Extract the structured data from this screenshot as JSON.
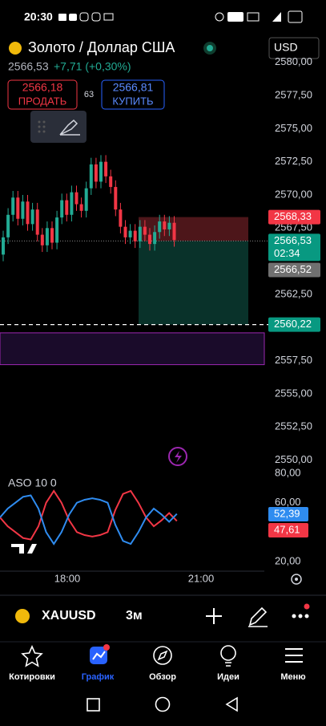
{
  "status_bar": {
    "time": "20:30"
  },
  "header": {
    "title": "Золото / Доллар США",
    "currency": "USD",
    "price": "2566,53",
    "change": "+7,71 (+0,30%)"
  },
  "trade": {
    "sell_price": "2566,18",
    "sell_label": "ПРОДАТЬ",
    "spread": "63",
    "buy_price": "2566,81",
    "buy_label": "КУПИТЬ"
  },
  "chart": {
    "type": "candlestick",
    "open": [
      2565.5,
      2566.8,
      2568.5,
      2569.8,
      2568.2,
      2569.5,
      2567.8,
      2568.9,
      2567.0,
      2566.2,
      2567.5,
      2566.4,
      2568.3,
      2569.6,
      2568.5,
      2570.2,
      2569.3,
      2568.8,
      2570.5,
      2572.3,
      2571.0,
      2572.5,
      2571.4,
      2570.6,
      2568.9,
      2567.6,
      2566.8,
      2567.3,
      2566.5,
      2567.6,
      2567.0,
      2566.3,
      2567.2,
      2568.0,
      2567.4,
      2567.9
    ],
    "high": [
      2567.3,
      2569.0,
      2570.3,
      2570.3,
      2570.0,
      2570.0,
      2569.4,
      2569.4,
      2567.5,
      2568.0,
      2568.0,
      2568.8,
      2570.1,
      2570.1,
      2570.7,
      2570.7,
      2569.8,
      2571.0,
      2572.8,
      2572.8,
      2573.0,
      2573.0,
      2571.9,
      2571.1,
      2569.4,
      2568.1,
      2567.8,
      2567.8,
      2568.1,
      2568.1,
      2567.5,
      2567.7,
      2568.5,
      2568.5,
      2568.4,
      2568.4
    ],
    "low": [
      2565.0,
      2566.3,
      2568.0,
      2567.7,
      2567.7,
      2567.3,
      2567.3,
      2566.5,
      2565.7,
      2565.7,
      2565.9,
      2565.9,
      2567.8,
      2568.0,
      2568.0,
      2568.8,
      2568.3,
      2568.3,
      2570.0,
      2570.5,
      2570.5,
      2570.9,
      2570.1,
      2568.4,
      2567.1,
      2566.3,
      2566.3,
      2566.0,
      2566.0,
      2566.5,
      2565.8,
      2565.8,
      2566.7,
      2566.9,
      2566.9,
      2566.1
    ],
    "close": [
      2566.8,
      2568.5,
      2569.8,
      2568.2,
      2569.5,
      2567.8,
      2568.9,
      2567.0,
      2566.2,
      2567.5,
      2566.4,
      2568.3,
      2569.6,
      2568.5,
      2570.2,
      2569.3,
      2568.8,
      2570.5,
      2572.3,
      2571.0,
      2572.5,
      2571.4,
      2570.6,
      2568.9,
      2567.6,
      2566.8,
      2567.3,
      2566.5,
      2567.6,
      2567.0,
      2566.3,
      2567.2,
      2568.0,
      2567.4,
      2567.9,
      2566.6
    ],
    "up_color": "#22ab94",
    "down_color": "#f23645",
    "yticks": [
      {
        "value": 2580,
        "label": "2580,00"
      },
      {
        "value": 2577.5,
        "label": "2577,50"
      },
      {
        "value": 2575,
        "label": "2575,00"
      },
      {
        "value": 2572.5,
        "label": "2572,50"
      },
      {
        "value": 2570,
        "label": "2570,00"
      },
      {
        "value": 2567.5,
        "label": "2567,50"
      },
      {
        "value": 2562.5,
        "label": "2562,50"
      },
      {
        "value": 2557.5,
        "label": "2557,50"
      },
      {
        "value": 2555,
        "label": "2555,00"
      },
      {
        "value": 2552.5,
        "label": "2552,50"
      },
      {
        "value": 2550,
        "label": "2550,00"
      }
    ],
    "take_profit": {
      "value": 2568.33,
      "label": "2568,33"
    },
    "last_price": {
      "value": 2566.53,
      "label": "2566,53",
      "countdown": "02:34"
    },
    "bid": {
      "value": 2566.52,
      "label": "2566,52"
    },
    "stop_loss": {
      "value": 2560.22,
      "label": "2560,22"
    },
    "range_band": {
      "top": 2559.6,
      "bottom": 2557.2
    }
  },
  "oscillator": {
    "title": "ASO 10 0",
    "series": [
      {
        "color": "#f23645",
        "values": [
          50,
          44,
          40,
          36,
          35,
          44,
          60,
          68,
          60,
          48,
          40,
          38,
          37,
          38,
          40,
          55,
          66,
          68,
          60,
          50,
          44,
          48,
          53,
          47.61
        ],
        "last_label": "47,61"
      },
      {
        "color": "#2f8cf0",
        "values": [
          50,
          56,
          60,
          64,
          65,
          56,
          40,
          32,
          40,
          52,
          60,
          62,
          63,
          62,
          60,
          45,
          34,
          32,
          40,
          50,
          56,
          52,
          47,
          52.39
        ],
        "last_label": "52,39"
      }
    ],
    "yticks": [
      {
        "value": 80,
        "label": "80,00"
      },
      {
        "value": 60,
        "label": "60,00"
      },
      {
        "value": 20,
        "label": "20,00"
      }
    ]
  },
  "time_axis": [
    "18:00",
    "21:00"
  ],
  "toolbar": {
    "symbol": "XAUUSD",
    "interval": "3м"
  },
  "nav": [
    "Котировки",
    "График",
    "Обзор",
    "Идеи",
    "Меню"
  ]
}
